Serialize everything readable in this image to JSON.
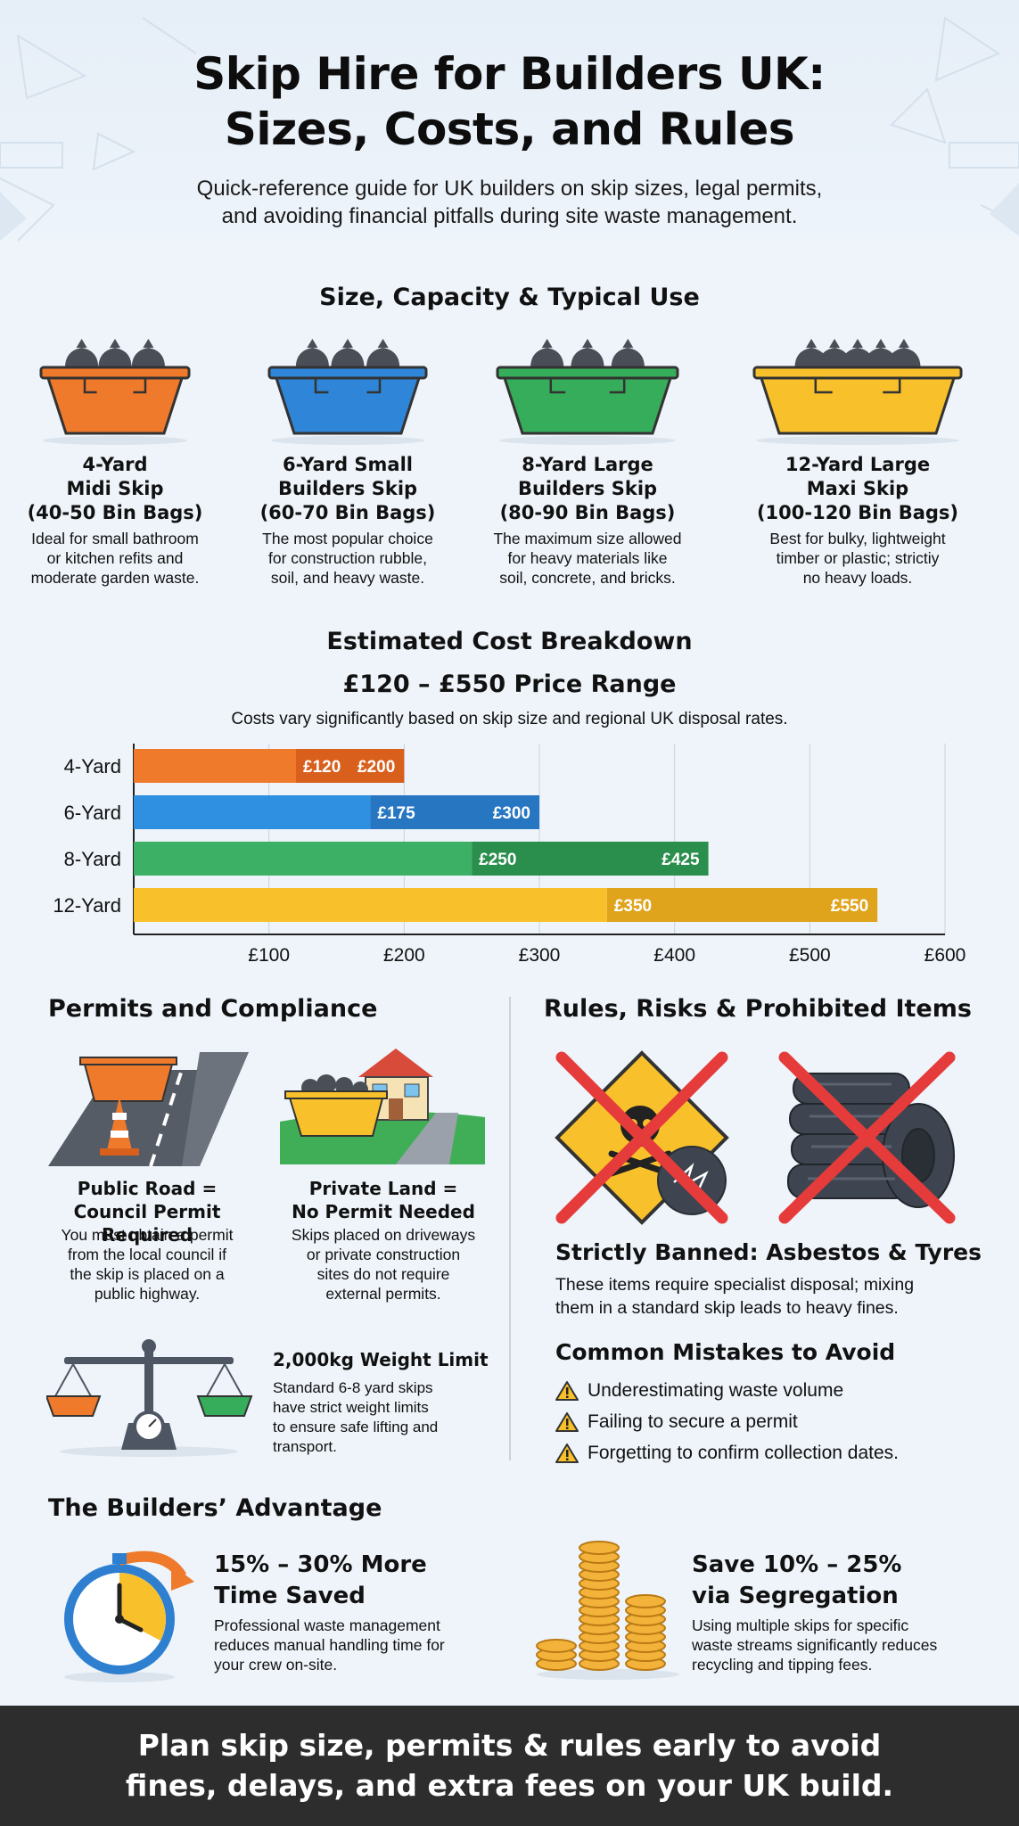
{
  "header": {
    "title_line1": "Skip Hire for Builders UK:",
    "title_line2": "Sizes, Costs, and Rules",
    "subtitle_line1": "Quick-reference guide for UK builders on skip sizes, legal permits,",
    "subtitle_line2": "and avoiding financial pitfalls during site waste management."
  },
  "sizes": {
    "title": "Size, Capacity & Typical Use",
    "items": [
      {
        "name1": "4-Yard",
        "name2": "Midi Skip",
        "name3": "(40-50 Bin Bags)",
        "d1": "Ideal for small bathroom",
        "d2": "or kitchen refits and",
        "d3": "moderate garden waste.",
        "color": "#f07a2c"
      },
      {
        "name1": "6-Yard Small",
        "name2": "Builders Skip",
        "name3": "(60-70 Bin Bags)",
        "d1": "The most popular choice",
        "d2": "for construction rubble,",
        "d3": "soil, and heavy waste.",
        "color": "#2f86d8"
      },
      {
        "name1": "8-Yard Large",
        "name2": "Builders Skip",
        "name3": "(80-90 Bin Bags)",
        "d1": "The maximum size allowed",
        "d2": "for heavy materials like",
        "d3": "soil, concrete, and bricks.",
        "color": "#36ad5a"
      },
      {
        "name1": "12-Yard Large",
        "name2": "Maxi Skip",
        "name3": "(100-120 Bin Bags)",
        "d1": "Best for bulky, lightweight",
        "d2": "timber or plastic; strictiy",
        "d3": "no heavy loads.",
        "color": "#f8c02a"
      }
    ]
  },
  "costs": {
    "title": "Estimated Cost Breakdown",
    "range": "£120 – £550 Price Range",
    "note": "Costs vary significantly based on skip size and regional UK disposal rates."
  },
  "chart_data": {
    "type": "bar",
    "orientation": "horizontal",
    "categories": [
      "4-Yard",
      "6-Yard",
      "8-Yard",
      "12-Yard"
    ],
    "series": [
      {
        "low": 120,
        "high": 200,
        "low_label": "£120",
        "high_label": "£200",
        "color": "#f07a2c",
        "dark": "#d85f1c"
      },
      {
        "low": 175,
        "high": 300,
        "low_label": "£175",
        "high_label": "£300",
        "color": "#2f8fe0",
        "dark": "#2776c2"
      },
      {
        "low": 250,
        "high": 425,
        "low_label": "£250",
        "high_label": "£425",
        "color": "#3cb065",
        "dark": "#2a8e4c"
      },
      {
        "low": 350,
        "high": 550,
        "low_label": "£350",
        "high_label": "£550",
        "color": "#f8c02a",
        "dark": "#e0a41c"
      }
    ],
    "xlim": [
      0,
      600
    ],
    "xticks": [
      100,
      200,
      300,
      400,
      500,
      600
    ],
    "xtick_labels": [
      "£100",
      "£200",
      "£300",
      "£400",
      "£500",
      "£600"
    ],
    "grid": true
  },
  "permits": {
    "title": "Permits and Compliance",
    "public_title1": "Public Road =",
    "public_title2": "Council Permit Required",
    "public_d1": "You must obtain a permit",
    "public_d2": "from the local council if",
    "public_d3": "the skip is placed on a",
    "public_d4": "public highway.",
    "private_title1": "Private Land =",
    "private_title2": "No Permit Needed",
    "private_d1": "Skips placed on driveways",
    "private_d2": "or private construction",
    "private_d3": "sites do not require",
    "private_d4": "external permits.",
    "weight_title": "2,000kg Weight Limit",
    "weight_d1": "Standard 6-8 yard skips",
    "weight_d2": "have strict weight limits",
    "weight_d3": "to ensure safe lifting and",
    "weight_d4": "transport."
  },
  "rules": {
    "title": "Rules, Risks & Prohibited Items",
    "banned_title": "Strictly Banned: Asbestos & Tyres",
    "banned_d1": "These items require specialist disposal; mixing",
    "banned_d2": "them in a standard skip leads to heavy fines.",
    "mistakes_title": "Common Mistakes to Avoid",
    "mistakes": [
      "Underestimating waste volume",
      "Failing to secure a permit",
      "Forgetting to confirm collection dates."
    ]
  },
  "advantage": {
    "title": "The Builders’ Advantage",
    "time_t1": "15% – 30% More",
    "time_t2": "Time Saved",
    "time_d1": "Professional waste management",
    "time_d2": "reduces manual handling time for",
    "time_d3": "your crew on-site.",
    "save_t1": "Save 10% – 25%",
    "save_t2": "via Segregation",
    "save_d1": "Using multiple skips for specific",
    "save_d2": "waste streams significantly reduces",
    "save_d3": "recycling and tipping fees."
  },
  "footer": {
    "line1": "Plan skip size, permits & rules early to avoid",
    "line2": "fines, delays, and extra fees on your UK build."
  }
}
